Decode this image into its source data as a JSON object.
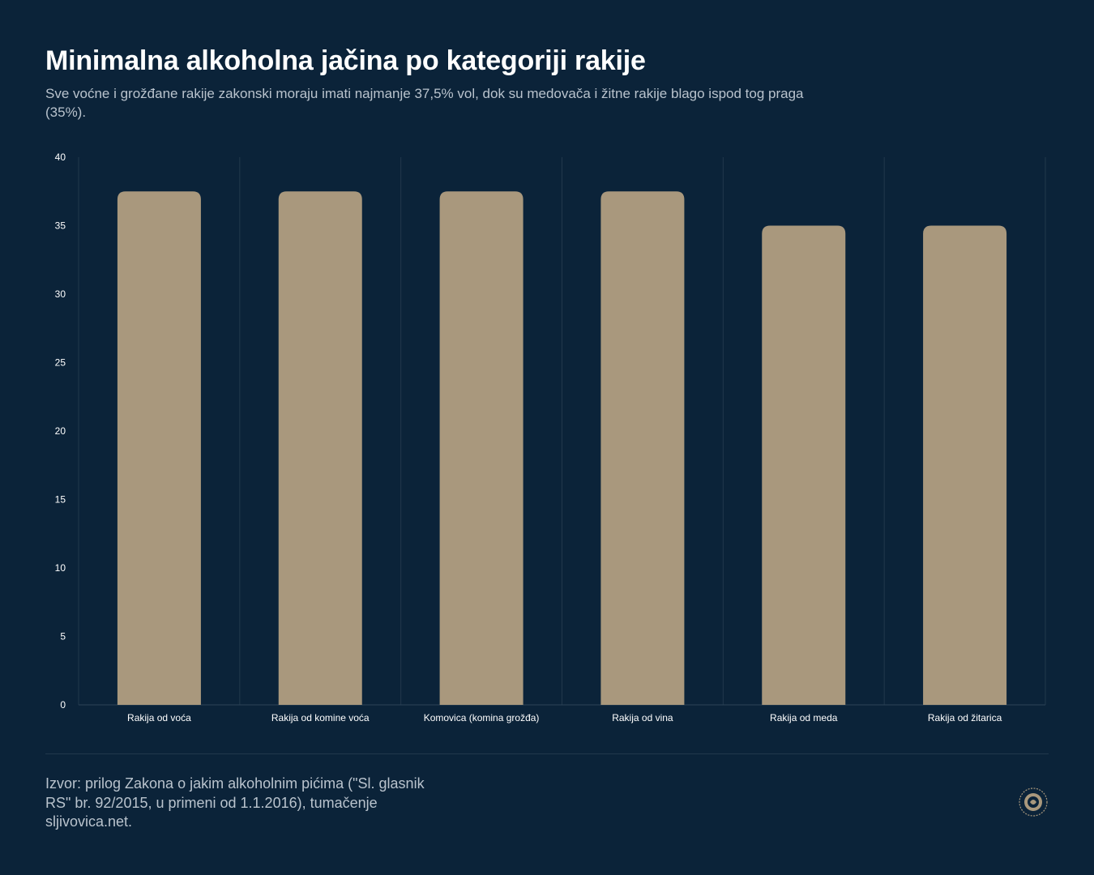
{
  "header": {
    "title": "Minimalna alkoholna jačina po kategoriji rakije",
    "subtitle": "Sve voćne i grožđane rakije zakonski moraju imati najmanje 37,5% vol, dok su medovača i žitne rakije blago ispod tog praga (35%)."
  },
  "footer": {
    "source": "Izvor: prilog Zakona o jakim alkoholnim pićima (\"Sl. glasnik RS\" br. 92/2015, u primeni od 1.1.2016), tumačenje sljivovica.net."
  },
  "colors": {
    "background": "#0b2339",
    "bar": "#a9987d",
    "axis_text": "#ffffff",
    "grid": "#22384c"
  },
  "chart_data": {
    "type": "bar",
    "title": "Minimalna alkoholna jačina po kategoriji rakije",
    "xlabel": "",
    "ylabel": "",
    "categories": [
      "Rakija od voća",
      "Rakija od komine voća",
      "Komovica (komina grožđa)",
      "Rakija od vina",
      "Rakija od meda",
      "Rakija od žitarica"
    ],
    "values": [
      37.5,
      37.5,
      37.5,
      37.5,
      35,
      35
    ],
    "ylim": [
      0,
      40
    ],
    "yticks": [
      0,
      5,
      10,
      15,
      20,
      25,
      30,
      35,
      40
    ],
    "grid": "vertical separators between categories"
  }
}
